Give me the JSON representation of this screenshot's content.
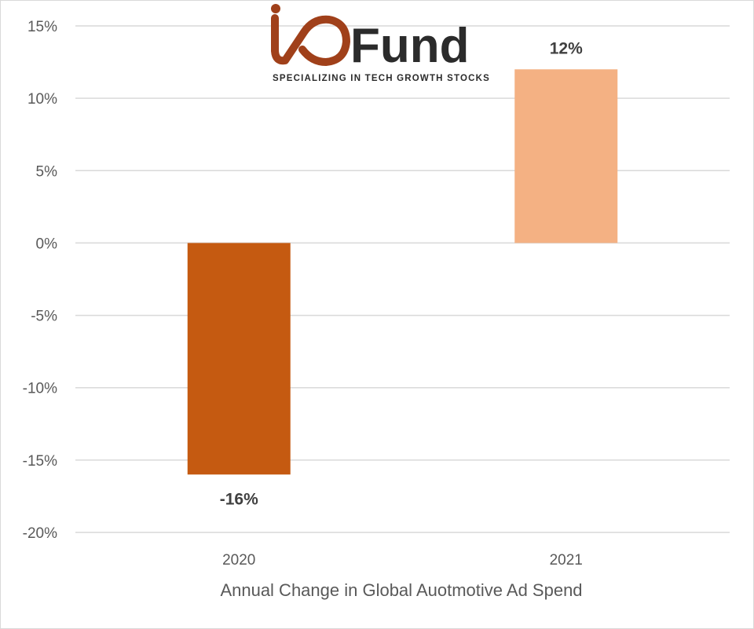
{
  "logo": {
    "brand_text": "Fund",
    "tagline": "SPECIALIZING IN TECH GROWTH STOCKS",
    "mark_color": "#a0401a"
  },
  "chart_data": {
    "type": "bar",
    "categories": [
      "2020",
      "2021"
    ],
    "values": [
      -16,
      12
    ],
    "data_labels": [
      "-16%",
      "12%"
    ],
    "bar_colors": [
      "#c55a11",
      "#f4b183"
    ],
    "xlabel": "Annual Change in Global Auotmotive Ad Spend",
    "ylabel": "",
    "ylim": [
      -20,
      15
    ],
    "yticks": [
      15,
      10,
      5,
      0,
      -5,
      -10,
      -15,
      -20
    ],
    "ytick_labels": [
      "15%",
      "10%",
      "5%",
      "0%",
      "-5%",
      "-10%",
      "-15%",
      "-20%"
    ],
    "grid": true,
    "legend": "none"
  }
}
